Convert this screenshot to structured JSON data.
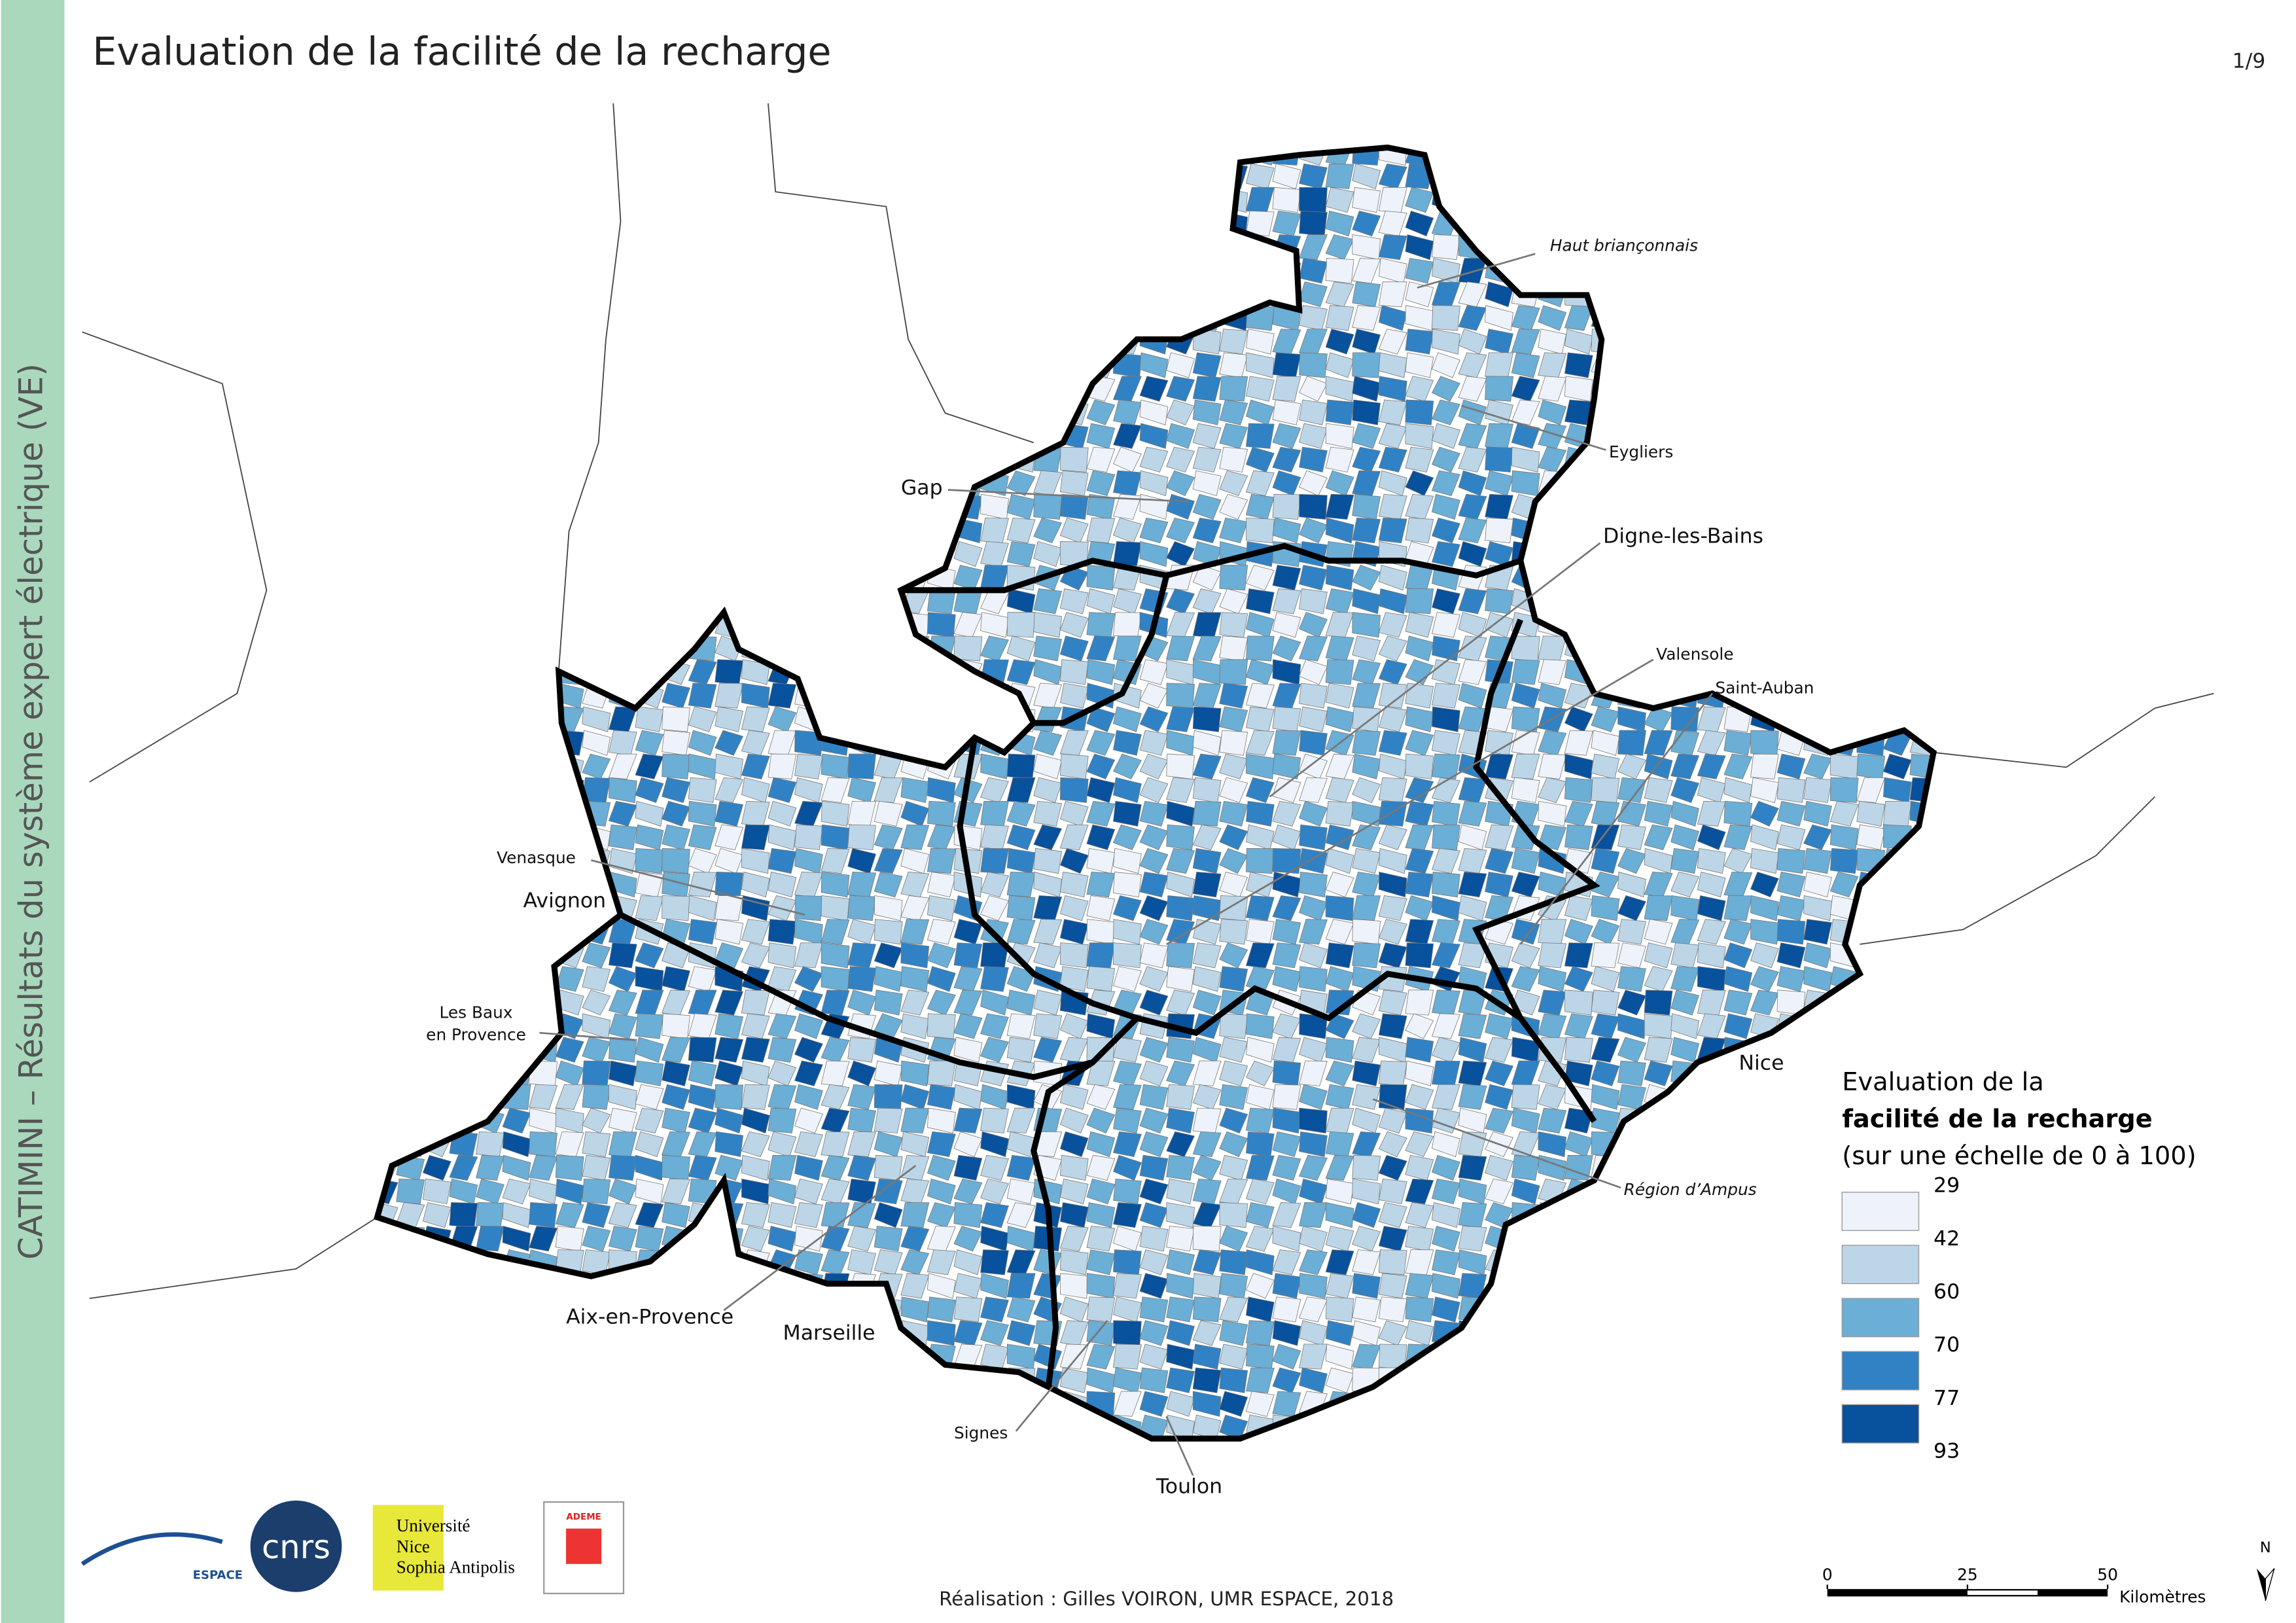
{
  "header": {
    "title": "Evaluation de la facilité de la recharge",
    "page": "1/9"
  },
  "sidebar": {
    "text": "CATIMINI – Résultats du système expert électrique (VE)"
  },
  "places": [
    [
      "Haut briançonnais"
    ],
    [
      "Eygliers"
    ],
    [
      "Gap"
    ],
    [
      "Digne-les-Bains"
    ],
    [
      "Valensole"
    ],
    [
      "Saint-Auban"
    ],
    [
      "Venasque"
    ],
    [
      "Avignon"
    ],
    [
      "Les Baux",
      "en Provence"
    ],
    [
      "Nice"
    ],
    [
      "Région d’Ampus"
    ],
    [
      "Aix-en-Provence"
    ],
    [
      "Marseille"
    ],
    [
      "Signes"
    ],
    [
      "Toulon"
    ]
  ],
  "legend": {
    "title": [
      "Evaluation de la",
      "facilité de la recharge",
      "(sur une échelle de 0 à 100)"
    ],
    "breaks": [
      29,
      42,
      60,
      70,
      77,
      93
    ],
    "colors": [
      "#eef3fb",
      "#bcd6e8",
      "#6baed6",
      "#3182c4",
      "#08519c"
    ]
  },
  "scale_bar": {
    "ticks": [
      0,
      25,
      50
    ],
    "unit": "Kilomètres"
  },
  "north": "N",
  "credit": "Réalisation : Gilles VOIRON, UMR ESPACE, 2018",
  "logos": {
    "espace": "ESPACE",
    "cnrs": "cnrs",
    "university": [
      "Université",
      "Nice",
      "Sophia Antipolis"
    ],
    "ademe": "ADEME"
  }
}
